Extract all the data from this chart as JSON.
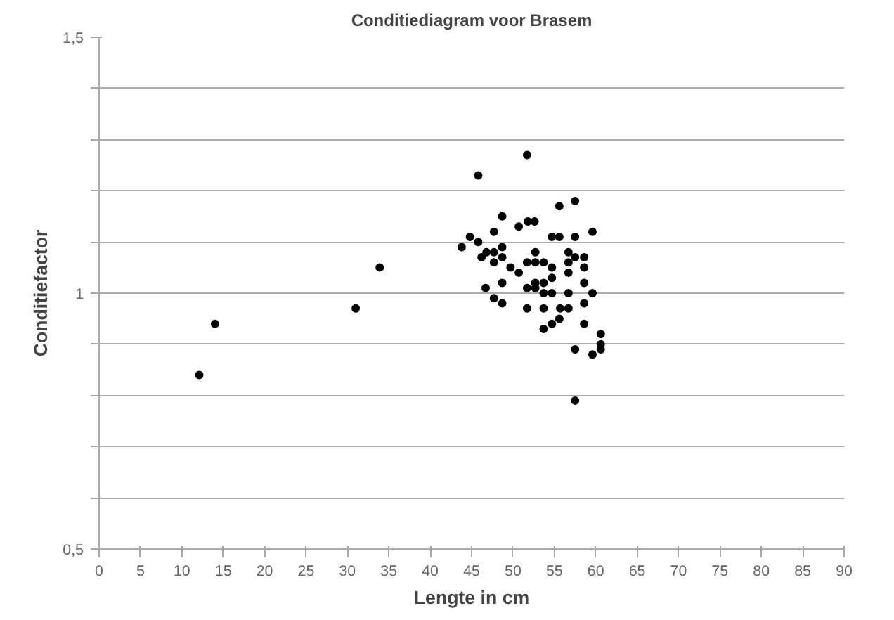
{
  "chart_data": {
    "type": "scatter",
    "title": "Conditiediagram voor Brasem",
    "xlabel": "Lengte in cm",
    "ylabel": "Conditiefactor",
    "xlim": [
      0,
      90
    ],
    "xticks": [
      0,
      5,
      10,
      15,
      20,
      25,
      30,
      35,
      40,
      45,
      50,
      55,
      60,
      65,
      70,
      75,
      80,
      85,
      90
    ],
    "ylim": [
      0.5,
      1.5
    ],
    "yticks": [
      {
        "value": 0.5,
        "label": "0,5"
      },
      {
        "value": 0.6,
        "label": null
      },
      {
        "value": 0.7,
        "label": null
      },
      {
        "value": 0.8,
        "label": null
      },
      {
        "value": 0.9,
        "label": null
      },
      {
        "value": 1,
        "label": "1"
      },
      {
        "value": 1.1,
        "label": null
      },
      {
        "value": 1.2,
        "label": null
      },
      {
        "value": 1.3,
        "label": null
      },
      {
        "value": 1.4,
        "label": null
      },
      {
        "value": 1.5,
        "label": "1,5"
      }
    ],
    "grid": "y",
    "marker": "circle",
    "series": [
      {
        "color": "#000000",
        "x": [
          12.1,
          14.0,
          31.0,
          33.9,
          51.7,
          45.8,
          57.5,
          55.6,
          48.7,
          50.7,
          51.8,
          52.6,
          47.7,
          59.6,
          54.7,
          55.6,
          57.5,
          44.8,
          45.8,
          43.8,
          48.7,
          46.8,
          47.7,
          46.2,
          48.7,
          52.7,
          56.7,
          57.5,
          58.6,
          47.7,
          51.7,
          52.7,
          53.7,
          56.7,
          49.7,
          54.7,
          58.6,
          50.7,
          56.7,
          54.7,
          48.7,
          52.7,
          53.7,
          58.6,
          51.7,
          52.7,
          46.7,
          53.7,
          54.7,
          56.7,
          59.6,
          47.7,
          48.7,
          58.6,
          51.7,
          53.7,
          55.7,
          56.7,
          55.6,
          54.7,
          53.7,
          58.6,
          60.6,
          57.5,
          60.6,
          60.6,
          59.6,
          57.5
        ],
        "values": [
          0.84,
          0.94,
          0.97,
          1.05,
          1.27,
          1.23,
          1.18,
          1.17,
          1.15,
          1.13,
          1.14,
          1.14,
          1.12,
          1.12,
          1.11,
          1.11,
          1.11,
          1.11,
          1.1,
          1.09,
          1.09,
          1.08,
          1.08,
          1.07,
          1.07,
          1.08,
          1.08,
          1.07,
          1.07,
          1.06,
          1.06,
          1.06,
          1.06,
          1.06,
          1.05,
          1.05,
          1.05,
          1.04,
          1.04,
          1.03,
          1.02,
          1.02,
          1.02,
          1.02,
          1.01,
          1.01,
          1.01,
          1.0,
          1.0,
          1.0,
          1.0,
          0.99,
          0.98,
          0.98,
          0.97,
          0.97,
          0.97,
          0.97,
          0.95,
          0.94,
          0.93,
          0.94,
          0.92,
          0.89,
          0.9,
          0.89,
          0.88,
          0.79
        ]
      }
    ]
  }
}
